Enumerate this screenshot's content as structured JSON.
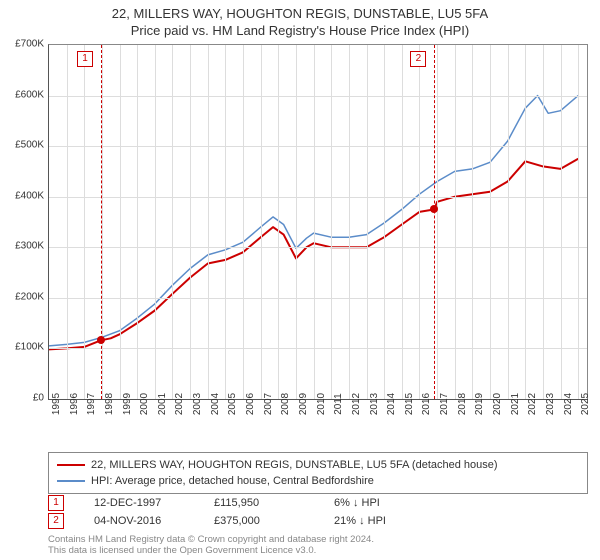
{
  "title_line1": "22, MILLERS WAY, HOUGHTON REGIS, DUNSTABLE, LU5 5FA",
  "title_line2": "Price paid vs. HM Land Registry's House Price Index (HPI)",
  "chart": {
    "type": "line",
    "background_color": "#ffffff",
    "grid_color": "#dddddd",
    "axis_color": "#555555",
    "label_fontsize": 10,
    "title_fontsize": 13,
    "x": {
      "min": 1995,
      "max": 2025.5,
      "ticks": [
        1995,
        1996,
        1997,
        1998,
        1999,
        2000,
        2001,
        2002,
        2003,
        2004,
        2005,
        2006,
        2007,
        2008,
        2009,
        2010,
        2011,
        2012,
        2013,
        2014,
        2015,
        2016,
        2017,
        2018,
        2019,
        2020,
        2021,
        2022,
        2023,
        2024,
        2025
      ]
    },
    "y": {
      "min": 0,
      "max": 700,
      "ticks": [
        0,
        100,
        200,
        300,
        400,
        500,
        600,
        700
      ],
      "tick_labels": [
        "£0",
        "£100K",
        "£200K",
        "£300K",
        "£400K",
        "£500K",
        "£600K",
        "£700K"
      ]
    },
    "series": [
      {
        "name": "price_paid",
        "label": "22, MILLERS WAY, HOUGHTON REGIS, DUNSTABLE, LU5 5FA (detached house)",
        "color": "#cc0000",
        "line_width": 2,
        "points": [
          [
            1995.0,
            98
          ],
          [
            1996.0,
            100
          ],
          [
            1997.0,
            103
          ],
          [
            1997.95,
            116
          ],
          [
            1998.5,
            120
          ],
          [
            1999.0,
            128
          ],
          [
            2000.0,
            150
          ],
          [
            2001.0,
            175
          ],
          [
            2002.0,
            208
          ],
          [
            2003.0,
            240
          ],
          [
            2004.0,
            268
          ],
          [
            2005.0,
            275
          ],
          [
            2006.0,
            290
          ],
          [
            2007.0,
            320
          ],
          [
            2007.7,
            340
          ],
          [
            2008.3,
            325
          ],
          [
            2009.0,
            278
          ],
          [
            2009.6,
            300
          ],
          [
            2010.0,
            308
          ],
          [
            2011.0,
            300
          ],
          [
            2012.0,
            300
          ],
          [
            2013.0,
            300
          ],
          [
            2014.0,
            320
          ],
          [
            2015.0,
            345
          ],
          [
            2016.0,
            370
          ],
          [
            2016.85,
            375
          ],
          [
            2017.0,
            390
          ],
          [
            2018.0,
            400
          ],
          [
            2019.0,
            405
          ],
          [
            2020.0,
            410
          ],
          [
            2021.0,
            430
          ],
          [
            2022.0,
            470
          ],
          [
            2023.0,
            460
          ],
          [
            2024.0,
            455
          ],
          [
            2025.0,
            475
          ]
        ]
      },
      {
        "name": "hpi",
        "label": "HPI: Average price, detached house, Central Bedfordshire",
        "color": "#5b8cc9",
        "line_width": 1.5,
        "points": [
          [
            1995.0,
            105
          ],
          [
            1996.0,
            108
          ],
          [
            1997.0,
            112
          ],
          [
            1998.0,
            122
          ],
          [
            1999.0,
            135
          ],
          [
            2000.0,
            160
          ],
          [
            2001.0,
            188
          ],
          [
            2002.0,
            225
          ],
          [
            2003.0,
            258
          ],
          [
            2004.0,
            285
          ],
          [
            2005.0,
            295
          ],
          [
            2006.0,
            310
          ],
          [
            2007.0,
            340
          ],
          [
            2007.7,
            360
          ],
          [
            2008.3,
            345
          ],
          [
            2009.0,
            298
          ],
          [
            2009.6,
            318
          ],
          [
            2010.0,
            328
          ],
          [
            2011.0,
            320
          ],
          [
            2012.0,
            320
          ],
          [
            2013.0,
            325
          ],
          [
            2014.0,
            348
          ],
          [
            2015.0,
            375
          ],
          [
            2016.0,
            405
          ],
          [
            2017.0,
            430
          ],
          [
            2018.0,
            450
          ],
          [
            2019.0,
            455
          ],
          [
            2020.0,
            468
          ],
          [
            2021.0,
            510
          ],
          [
            2022.0,
            575
          ],
          [
            2022.7,
            600
          ],
          [
            2023.3,
            565
          ],
          [
            2024.0,
            570
          ],
          [
            2025.0,
            600
          ]
        ]
      }
    ],
    "markers": [
      {
        "x": 1997.95,
        "y": 116,
        "color": "#cc0000",
        "label": "1"
      },
      {
        "x": 2016.85,
        "y": 375,
        "color": "#cc0000",
        "label": "2"
      }
    ],
    "event_lines": [
      {
        "x": 1997.95,
        "label": "1",
        "color": "#cc0000"
      },
      {
        "x": 2016.85,
        "label": "2",
        "color": "#cc0000"
      }
    ]
  },
  "legend": {
    "items": [
      {
        "color": "#cc0000",
        "label": "22, MILLERS WAY, HOUGHTON REGIS, DUNSTABLE, LU5 5FA (detached house)"
      },
      {
        "color": "#5b8cc9",
        "label": "HPI: Average price, detached house, Central Bedfordshire"
      }
    ]
  },
  "events": [
    {
      "n": "1",
      "date": "12-DEC-1997",
      "price": "£115,950",
      "delta": "6% ↓ HPI"
    },
    {
      "n": "2",
      "date": "04-NOV-2016",
      "price": "£375,000",
      "delta": "21% ↓ HPI"
    }
  ],
  "footer_line1": "Contains HM Land Registry data © Crown copyright and database right 2024.",
  "footer_line2": "This data is licensed under the Open Government Licence v3.0."
}
